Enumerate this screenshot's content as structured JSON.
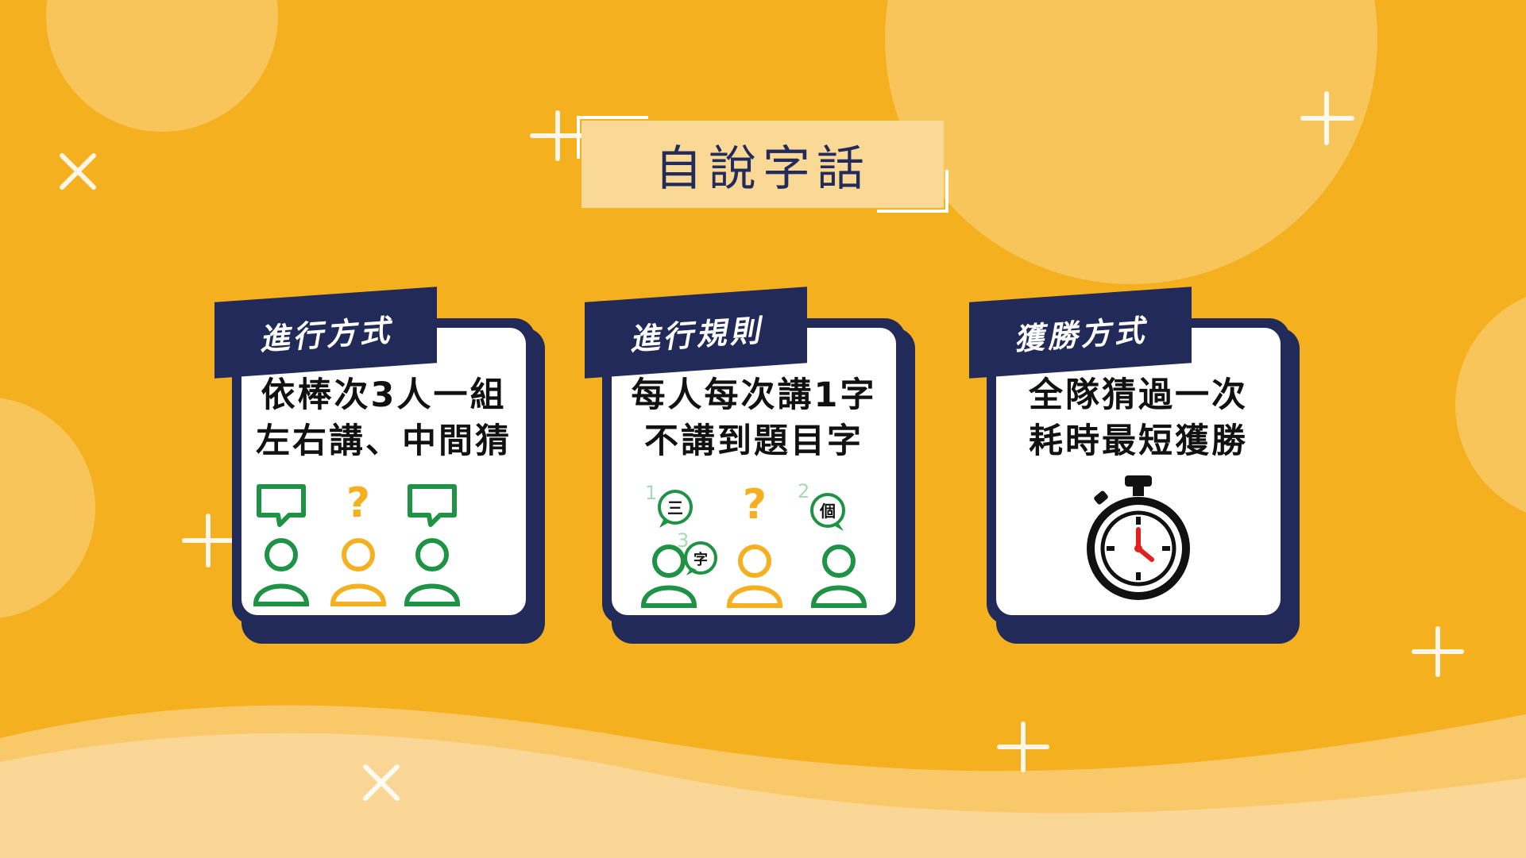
{
  "slide_title": "自說字話",
  "cards": [
    {
      "tab_label": "進行方式",
      "lines": [
        "依棒次3人一組",
        "左右講、中間猜"
      ],
      "question_mark": "?"
    },
    {
      "tab_label": "進行規則",
      "lines": [
        "每人每次講1字",
        "不講到題目字"
      ],
      "question_mark": "?",
      "bubbles": [
        {
          "number": "1",
          "char": "三"
        },
        {
          "number": "2",
          "char": "個"
        },
        {
          "number": "3",
          "char": "字"
        }
      ]
    },
    {
      "tab_label": "獲勝方式",
      "lines": [
        "全隊猜過一次",
        "耗時最短獲勝"
      ]
    }
  ],
  "colors": {
    "background": "#f5b020",
    "navy": "#222a5a",
    "green": "#1f9345",
    "yellow": "#f5b020",
    "clock_hand": "#e0211d"
  },
  "icons": [
    "speech-bubble-icon",
    "person-icon",
    "question-icon",
    "stopwatch-icon"
  ]
}
